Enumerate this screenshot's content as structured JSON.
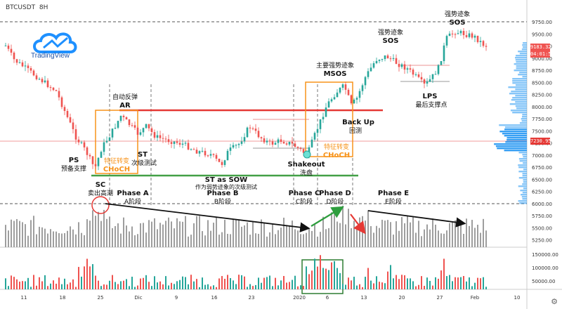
{
  "header": {
    "symbol": "BTCUSDT",
    "interval": "8H"
  },
  "logo": {
    "text": "TradingView",
    "icon": "cloud-logo-icon"
  },
  "price_axis": {
    "ticks": [
      "9750.00",
      "9500.00",
      "9250.00",
      "9000.00",
      "8750.00",
      "8500.00",
      "8250.00",
      "8000.00",
      "7750.00",
      "7500.00",
      "7250.00",
      "7000.00",
      "6750.00",
      "6500.00",
      "6250.00",
      "6000.00",
      "5750.00",
      "5500.00",
      "5250.00"
    ],
    "current_price": "9183.32",
    "countdown": "04:01:53",
    "marker_price": "7230.95"
  },
  "volume_axis": {
    "ticks": [
      "150000.00",
      "100000.00",
      "50000.00"
    ]
  },
  "time_axis": {
    "labels": [
      "11",
      "18",
      "25",
      "Dic",
      "9",
      "16",
      "23",
      "2020",
      "6",
      "13",
      "20",
      "27",
      "Feb",
      "10"
    ]
  },
  "annotations": {
    "ps": "PS",
    "ps_cn": "预备支撑",
    "sc": "SC",
    "sc_cn": "卖出高潮",
    "ar_cn": "自动反弹",
    "ar": "AR",
    "st": "ST",
    "st_cn": "次级测试",
    "choch1_cn": "特征转变",
    "choch1": "CHoCH",
    "st_sow": "ST as SOW",
    "st_sow_cn": "作为弱势迹象的次级测试",
    "shakeout": "Shakeout",
    "shakeout_cn": "洗盘",
    "msos_cn": "主要强势迹象",
    "msos": "MSOS",
    "backup": "Back Up",
    "backup_cn": "回测",
    "choch2_cn": "特征转变",
    "choch2": "CHoCH",
    "sos1_cn": "强势迹象",
    "sos1": "SOS",
    "sos2_cn": "强势迹象",
    "sos2": "SOS",
    "lps": "LPS",
    "lps_cn": "最后支撑点",
    "phase_a": "Phase A",
    "phase_a_cn": "A阶段",
    "phase_b": "Phase B",
    "phase_b_cn": "B阶段",
    "phase_c": "Phase C",
    "phase_c_cn": "C阶段",
    "phase_d": "Phase D",
    "phase_d_cn": "D阶段",
    "phase_e": "Phase E",
    "phase_e_cn": "E阶段"
  },
  "colors": {
    "up": "#26a69a",
    "down": "#ef5350",
    "resistance": "#e53935",
    "support": "#43a047",
    "orange": "#f7931a",
    "volume_profile": "#2196f3"
  }
}
